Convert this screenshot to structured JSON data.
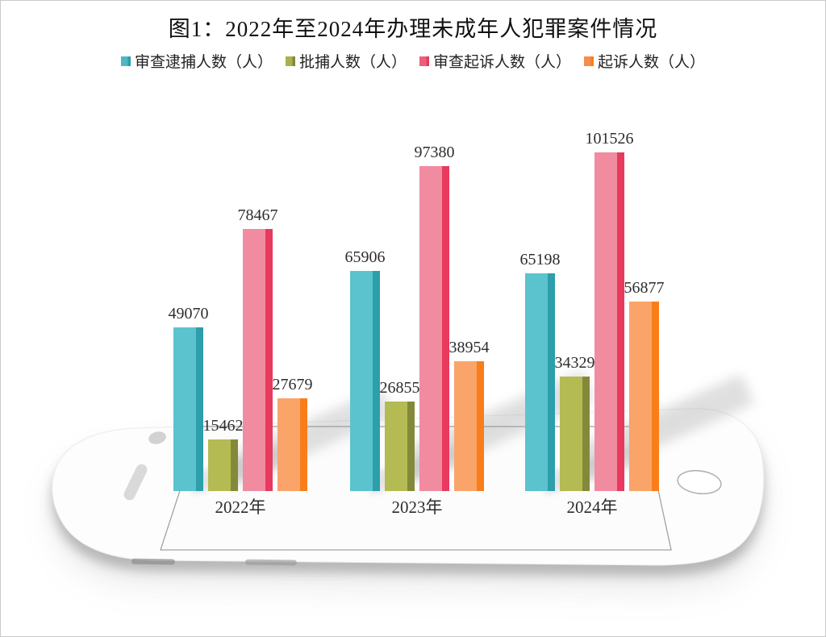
{
  "figure": {
    "title": "图1：2022年至2024年办理未成年人犯罪案件情况"
  },
  "chart_data": {
    "type": "bar",
    "title": "图1：2022年至2024年办理未成年人犯罪案件情况",
    "categories": [
      "2022年",
      "2023年",
      "2024年"
    ],
    "series": [
      {
        "name": "审查逮捕人数（人）",
        "values": [
          49070,
          65906,
          65198
        ],
        "color": "#4DB8C4",
        "face_color": "#5BC3CD",
        "edge_color": "#2D9EAB"
      },
      {
        "name": "批捕人数（人）",
        "values": [
          15462,
          26855,
          34329
        ],
        "color": "#A9B14D",
        "face_color": "#B4BB52",
        "edge_color": "#84893A"
      },
      {
        "name": "审查起诉人数（人）",
        "values": [
          78467,
          97380,
          101526
        ],
        "color": "#EC5F7B",
        "face_color": "#F18BA0",
        "edge_color": "#E8395E"
      },
      {
        "name": "起诉人数（人）",
        "values": [
          27679,
          38954,
          56877
        ],
        "color": "#F68C4E",
        "face_color": "#FAA469",
        "edge_color": "#F87E1A"
      }
    ],
    "data_labels": true,
    "legend_position": "top",
    "xlabel": "",
    "ylabel": "",
    "axes_visible": false,
    "grid": false,
    "background": "phone-mockup-illustration"
  }
}
